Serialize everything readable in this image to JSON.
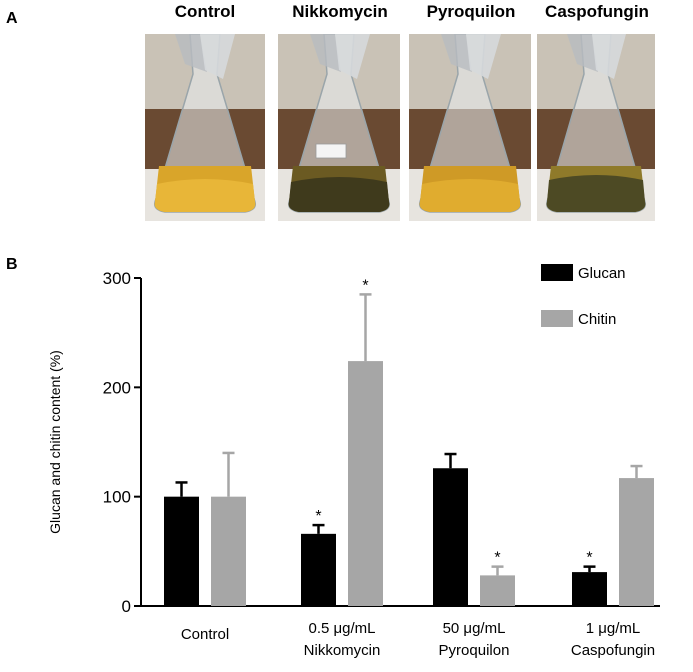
{
  "panel_a": {
    "label": "A",
    "flasks": [
      {
        "label": "Control",
        "liquid": "#d9a52a",
        "sediment": "#e8b638"
      },
      {
        "label": "Nikkomycin",
        "liquid": "#6b5a22",
        "sediment": "#3f3a1c"
      },
      {
        "label": "Pyroquilon",
        "liquid": "#cf9a26",
        "sediment": "#e0ac2f"
      },
      {
        "label": "Caspofungin",
        "liquid": "#8f7a2a",
        "sediment": "#4d4a24"
      }
    ]
  },
  "panel_b": {
    "label": "B"
  },
  "chart_data": {
    "type": "bar",
    "ylabel": "Glucan and chitin content (%)",
    "ylim": [
      0,
      300
    ],
    "yticks": [
      0,
      100,
      200,
      300
    ],
    "categories": [
      [
        "Control"
      ],
      [
        "0.5 μg/mL",
        "Nikkomycin"
      ],
      [
        "50 μg/mL",
        "Pyroquilon"
      ],
      [
        "1 μg/mL",
        "Caspofungin"
      ]
    ],
    "series": [
      {
        "name": "Glucan",
        "color": "#000000",
        "values": [
          100,
          66,
          126,
          31
        ],
        "errors": [
          13,
          8,
          13,
          5
        ],
        "significant": [
          false,
          true,
          false,
          true
        ]
      },
      {
        "name": "Chitin",
        "color": "#a6a6a6",
        "values": [
          100,
          224,
          28,
          117
        ],
        "errors": [
          40,
          61,
          8,
          11
        ],
        "significant": [
          false,
          true,
          true,
          false
        ]
      }
    ],
    "significance_marker": "*",
    "legend_position": "top-right"
  }
}
